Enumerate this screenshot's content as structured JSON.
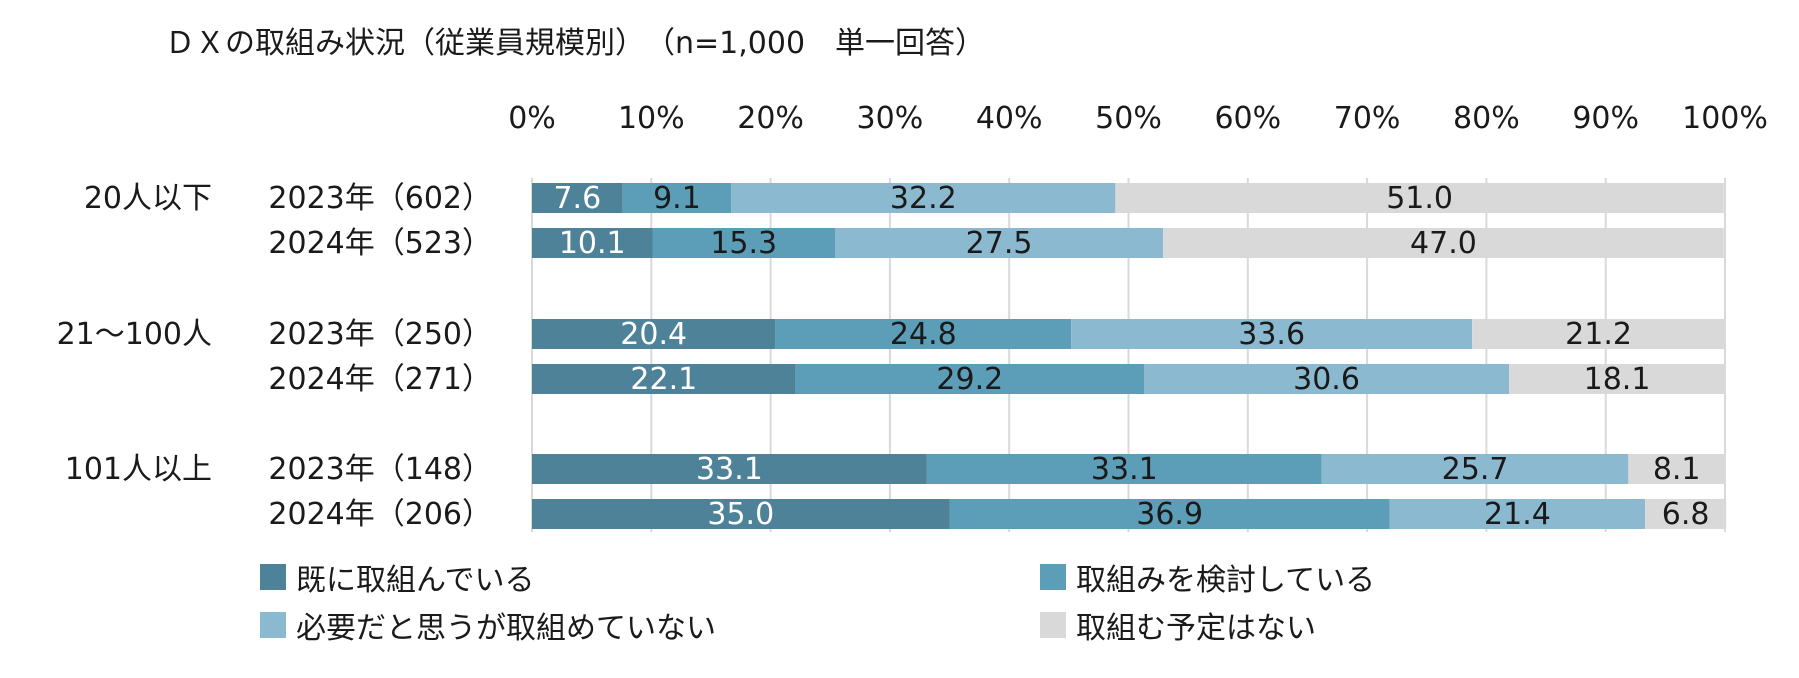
{
  "chart_data": {
    "type": "bar",
    "orientation": "horizontal-stacked-100",
    "title": "ＤＸの取組み状況（従業員規模別）　（n=1,000　単一回答）",
    "x_ticks": [
      "0%",
      "10%",
      "20%",
      "30%",
      "40%",
      "50%",
      "60%",
      "70%",
      "80%",
      "90%",
      "100%"
    ],
    "xlim": [
      0,
      100
    ],
    "grid": true,
    "legend_position": "bottom",
    "groups": [
      {
        "label": "20人以下",
        "rows": [
          {
            "label": "2023年（602）",
            "values": [
              7.6,
              9.1,
              32.2,
              51.0
            ]
          },
          {
            "label": "2024年（523）",
            "values": [
              10.1,
              15.3,
              27.5,
              47.0
            ]
          }
        ]
      },
      {
        "label": "21～100人",
        "rows": [
          {
            "label": "2023年（250）",
            "values": [
              20.4,
              24.8,
              33.6,
              21.2
            ]
          },
          {
            "label": "2024年（271）",
            "values": [
              22.1,
              29.2,
              30.6,
              18.1
            ]
          }
        ]
      },
      {
        "label": "101人以上",
        "rows": [
          {
            "label": "2023年（148）",
            "values": [
              33.1,
              33.1,
              25.7,
              8.1
            ]
          },
          {
            "label": "2024年（206）",
            "values": [
              35.0,
              36.9,
              21.4,
              6.8
            ]
          }
        ]
      }
    ],
    "series": [
      {
        "name": "既に取組んでいる",
        "color": "#4e8298",
        "label_color": "#ffffff"
      },
      {
        "name": "取組みを検討している",
        "color": "#5c9eb8",
        "label_color": "#1a1a1a"
      },
      {
        "name": "必要だと思うが取組めていない",
        "color": "#8bb9cf",
        "label_color": "#1a1a1a"
      },
      {
        "name": "取組む予定はない",
        "color": "#d9d9d9",
        "label_color": "#1a1a1a"
      }
    ]
  }
}
